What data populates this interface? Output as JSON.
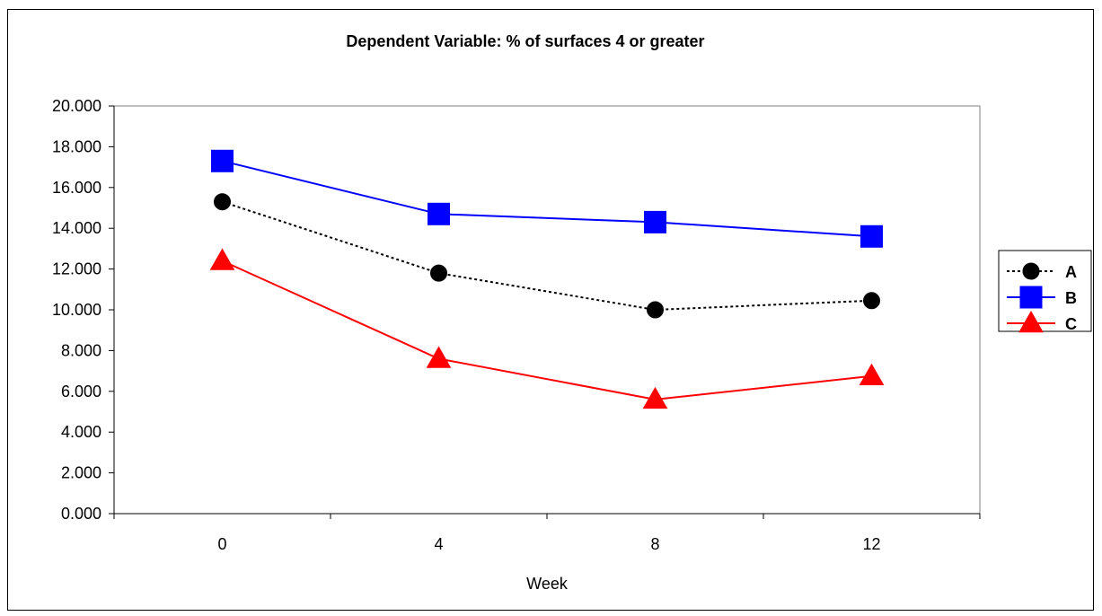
{
  "chart_data": {
    "type": "line",
    "title": "Dependent Variable:  % of surfaces 4 or greater",
    "xlabel": "Week",
    "ylabel": "",
    "categories": [
      "0",
      "4",
      "8",
      "12"
    ],
    "ylim": [
      0,
      20
    ],
    "yticks": [
      "0.000",
      "2.000",
      "4.000",
      "6.000",
      "8.000",
      "10.000",
      "12.000",
      "14.000",
      "16.000",
      "18.000",
      "20.000"
    ],
    "grid": false,
    "legend_position": "right",
    "series": [
      {
        "name": "A",
        "values": [
          15.3,
          11.8,
          10.0,
          10.45
        ],
        "color": "#000000",
        "line_style": "dotted",
        "marker": "circle"
      },
      {
        "name": "B",
        "values": [
          17.3,
          14.7,
          14.3,
          13.6
        ],
        "color": "#0000FF",
        "line_style": "solid",
        "marker": "square"
      },
      {
        "name": "C",
        "values": [
          12.4,
          7.6,
          5.6,
          6.75
        ],
        "color": "#FF0000",
        "line_style": "solid",
        "marker": "triangle"
      }
    ]
  }
}
